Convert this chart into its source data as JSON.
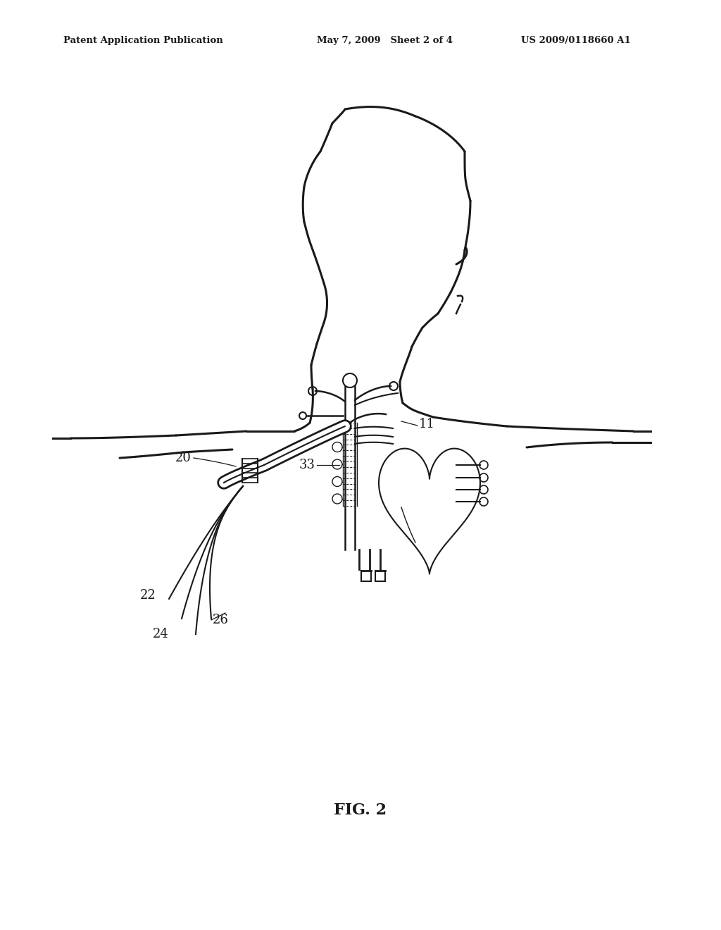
{
  "bg_color": "#ffffff",
  "line_color": "#1a1a1a",
  "header_left": "Patent Application Publication",
  "header_mid": "May 7, 2009   Sheet 2 of 4",
  "header_right": "US 2009/0118660 A1",
  "fig_label": "FIG. 2",
  "figsize": [
    10.24,
    13.2
  ],
  "dpi": 100
}
